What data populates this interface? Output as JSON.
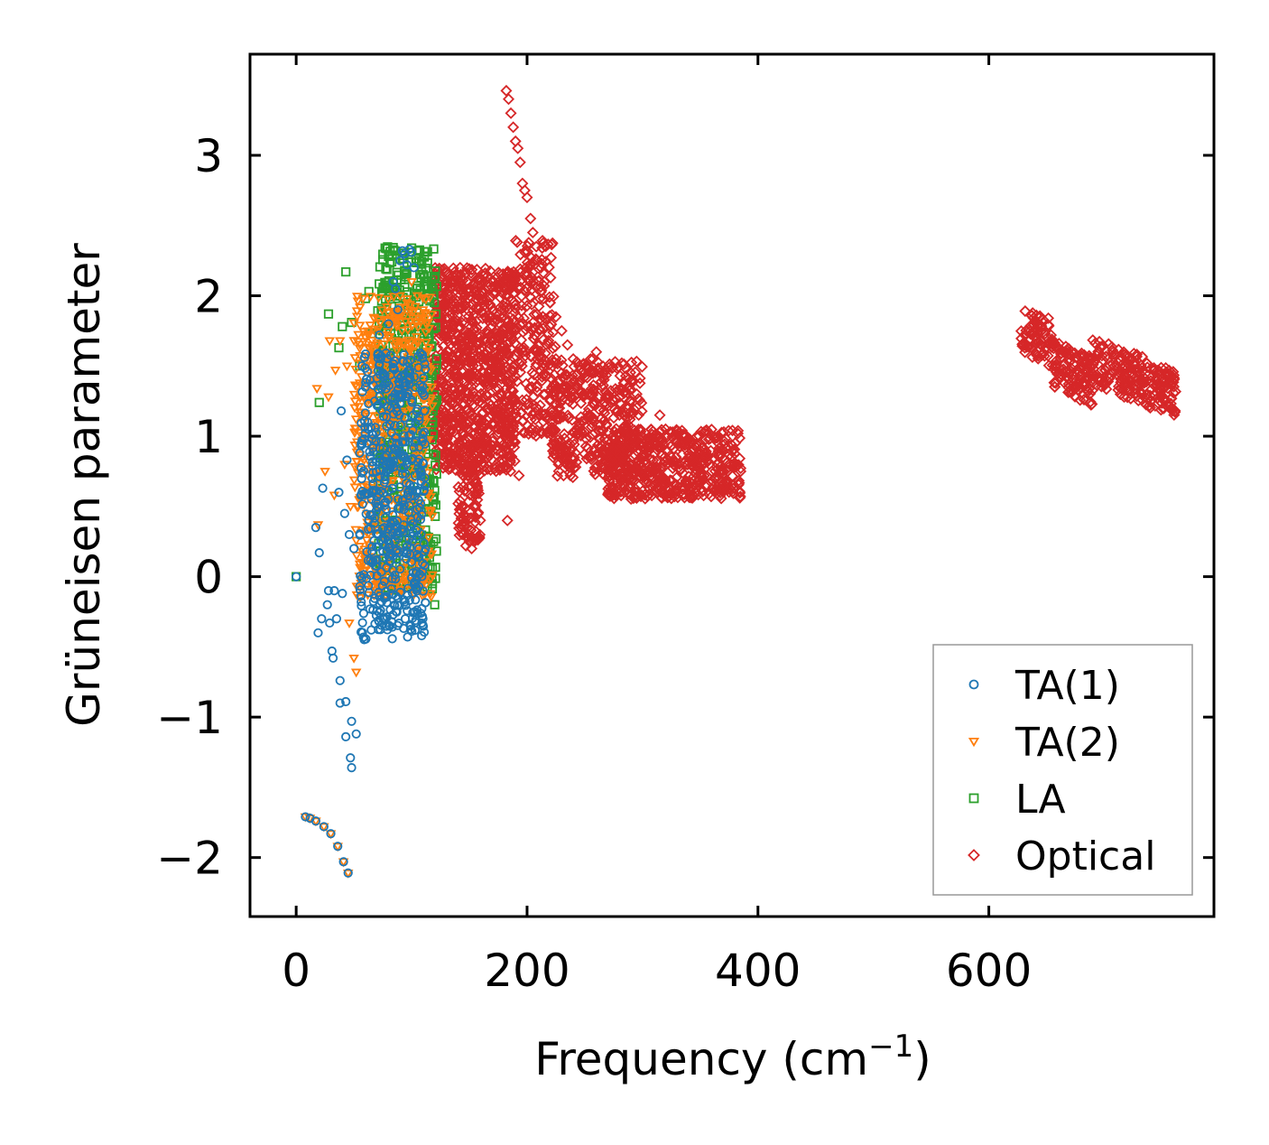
{
  "chart_data": {
    "type": "scatter",
    "title": "",
    "xlabel_base": "Frequency (cm",
    "xlabel_sup": "−1",
    "xlabel_tail": ")",
    "ylabel": "Grüneisen parameter",
    "xlim": [
      -40,
      795
    ],
    "ylim": [
      -2.42,
      3.72
    ],
    "xticks": [
      0,
      200,
      400,
      600
    ],
    "xtick_labels": [
      "0",
      "200",
      "400",
      "600"
    ],
    "yticks": [
      -2,
      -1,
      0,
      1,
      2,
      3
    ],
    "ytick_labels": [
      "−2",
      "−1",
      "0",
      "1",
      "2",
      "3"
    ],
    "legend_position": "lower-right",
    "series": [
      {
        "name": "TA(1)",
        "marker": "circle",
        "color": "#1f77b4",
        "points": [
          [
            0,
            0
          ],
          [
            8,
            -1.71
          ],
          [
            12,
            -1.72
          ],
          [
            17,
            -1.74
          ],
          [
            17,
            0.35
          ],
          [
            19,
            -0.4
          ],
          [
            20,
            0.17
          ],
          [
            22,
            -0.3
          ],
          [
            23,
            0.63
          ],
          [
            24,
            -1.78
          ],
          [
            27,
            -0.2
          ],
          [
            28,
            -0.1
          ],
          [
            29,
            -0.33
          ],
          [
            30,
            -1.83
          ],
          [
            31,
            -0.53
          ],
          [
            32,
            -0.58
          ],
          [
            33,
            -0.1
          ],
          [
            35,
            -0.3
          ],
          [
            36,
            -1.92
          ],
          [
            37,
            0.6
          ],
          [
            38,
            -0.74
          ],
          [
            38,
            -0.9
          ],
          [
            39,
            1.18
          ],
          [
            40,
            -0.12
          ],
          [
            41,
            -2.03
          ],
          [
            42,
            0.45
          ],
          [
            43,
            -0.89
          ],
          [
            43,
            -1.14
          ],
          [
            44,
            0.83
          ],
          [
            45,
            -2.11
          ],
          [
            46,
            0.3
          ],
          [
            47,
            -1.29
          ],
          [
            48,
            -1.36
          ],
          [
            48,
            -1.03
          ],
          [
            50,
            0.2
          ],
          [
            52,
            -1.12
          ],
          [
            55,
            0.88
          ],
          [
            57,
            1.5
          ],
          [
            60,
            1.35
          ],
          [
            62,
            1.1
          ],
          [
            66,
            0.7
          ],
          [
            68,
            1.25
          ],
          [
            70,
            0.5
          ],
          [
            72,
            1.72
          ],
          [
            75,
            1.45
          ],
          [
            78,
            0.75
          ],
          [
            80,
            1.8
          ],
          [
            82,
            1.2
          ],
          [
            84,
            2.1
          ],
          [
            86,
            2.05
          ],
          [
            88,
            1.9
          ],
          [
            90,
            2.25
          ],
          [
            92,
            2.32
          ],
          [
            94,
            2.3
          ],
          [
            96,
            2.22
          ],
          [
            98,
            2.33
          ],
          [
            100,
            2.31
          ],
          [
            102,
            2.2
          ]
        ],
        "cluster": {
          "x": [
            55,
            112
          ],
          "y": [
            -0.45,
            1.6
          ],
          "count": 520,
          "seed": 11
        }
      },
      {
        "name": "TA(2)",
        "marker": "triangle",
        "color": "#ff7f0e",
        "points": [
          [
            8,
            -1.71
          ],
          [
            12,
            -1.72
          ],
          [
            17,
            -1.74
          ],
          [
            18,
            1.34
          ],
          [
            19,
            0.37
          ],
          [
            24,
            -1.78
          ],
          [
            25,
            0.75
          ],
          [
            28,
            1.28
          ],
          [
            29,
            1.68
          ],
          [
            30,
            -1.83
          ],
          [
            33,
            0.58
          ],
          [
            34,
            1.47
          ],
          [
            36,
            -1.92
          ],
          [
            38,
            1.68
          ],
          [
            41,
            -2.03
          ],
          [
            42,
            0.8
          ],
          [
            44,
            1.5
          ],
          [
            45,
            -2.11
          ],
          [
            46,
            -0.33
          ],
          [
            47,
            0.5
          ],
          [
            50,
            -0.58
          ],
          [
            51,
            1.25
          ],
          [
            52,
            -0.68
          ],
          [
            55,
            0.55
          ],
          [
            58,
            1.1
          ],
          [
            62,
            1.75
          ],
          [
            66,
            0.9
          ],
          [
            70,
            1.65
          ],
          [
            75,
            1.3
          ],
          [
            80,
            1.55
          ],
          [
            85,
            1.85
          ],
          [
            90,
            2.0
          ],
          [
            96,
            1.95
          ],
          [
            100,
            2.1
          ],
          [
            105,
            2.0
          ],
          [
            110,
            1.9
          ]
        ],
        "cluster": {
          "x": [
            50,
            118
          ],
          "y": [
            -0.15,
            2.0
          ],
          "count": 600,
          "seed": 23
        }
      },
      {
        "name": "LA",
        "marker": "square",
        "color": "#2ca02c",
        "points": [
          [
            0,
            0
          ],
          [
            20,
            1.24
          ],
          [
            28,
            1.87
          ],
          [
            37,
            1.63
          ],
          [
            40,
            1.78
          ],
          [
            43,
            2.17
          ],
          [
            48,
            1.81
          ],
          [
            55,
            1.5
          ],
          [
            60,
            1.98
          ],
          [
            63,
            2.03
          ],
          [
            66,
            1.73
          ],
          [
            70,
            1.6
          ],
          [
            75,
            1.75
          ],
          [
            80,
            2.28
          ],
          [
            85,
            1.2
          ],
          [
            90,
            2.0
          ],
          [
            95,
            2.15
          ],
          [
            100,
            2.34
          ],
          [
            105,
            2.32
          ],
          [
            110,
            2.15
          ],
          [
            114,
            2.05
          ],
          [
            118,
            -0.05
          ],
          [
            120,
            -0.2
          ],
          [
            119,
            0.25
          ]
        ],
        "cluster": {
          "x": [
            70,
            122
          ],
          "y": [
            -0.1,
            2.35
          ],
          "count": 560,
          "seed": 37
        }
      },
      {
        "name": "Optical",
        "marker": "diamond",
        "color": "#d62728",
        "points": [
          [
            182,
            3.46
          ],
          [
            184,
            3.4
          ],
          [
            186,
            3.3
          ],
          [
            188,
            3.2
          ],
          [
            190,
            3.1
          ],
          [
            192,
            3.05
          ],
          [
            194,
            2.95
          ],
          [
            196,
            2.8
          ],
          [
            198,
            2.75
          ],
          [
            200,
            2.7
          ],
          [
            203,
            2.55
          ],
          [
            205,
            2.45
          ],
          [
            208,
            2.35
          ],
          [
            212,
            2.2
          ],
          [
            215,
            2.1
          ],
          [
            220,
            1.95
          ],
          [
            225,
            1.85
          ],
          [
            230,
            1.75
          ],
          [
            235,
            1.65
          ],
          [
            240,
            1.55
          ],
          [
            245,
            1.5
          ],
          [
            250,
            1.45
          ],
          [
            255,
            1.55
          ],
          [
            260,
            1.6
          ],
          [
            265,
            1.35
          ],
          [
            270,
            1.3
          ],
          [
            275,
            1.25
          ],
          [
            280,
            1.15
          ],
          [
            285,
            1.15
          ],
          [
            290,
            1.25
          ],
          [
            295,
            1.3
          ],
          [
            300,
            1.0
          ],
          [
            305,
            0.95
          ],
          [
            310,
            0.95
          ],
          [
            315,
            1.15
          ],
          [
            320,
            1.05
          ],
          [
            325,
            0.85
          ],
          [
            330,
            0.8
          ],
          [
            335,
            0.95
          ],
          [
            340,
            0.85
          ],
          [
            345,
            0.8
          ],
          [
            350,
            0.9
          ],
          [
            355,
            0.85
          ],
          [
            360,
            0.75
          ],
          [
            365,
            0.8
          ],
          [
            370,
            0.9
          ],
          [
            375,
            0.8
          ],
          [
            380,
            0.78
          ],
          [
            385,
            0.75
          ],
          [
            183,
            0.4
          ],
          [
            193,
            0.72
          ],
          [
            142,
            2.2
          ],
          [
            138,
            2.15
          ],
          [
            147,
            0.22
          ],
          [
            152,
            0.2
          ],
          [
            145,
            0.3
          ],
          [
            150,
            0.25
          ]
        ],
        "clusters": [
          {
            "x": [
              118,
              190
            ],
            "y": [
              0.75,
              2.2
            ],
            "count": 950,
            "seed": 41
          },
          {
            "x": [
              140,
              160
            ],
            "y": [
              0.25,
              1.0
            ],
            "count": 120,
            "seed": 43
          },
          {
            "x": [
              190,
              225
            ],
            "y": [
              1.0,
              2.4
            ],
            "count": 220,
            "seed": 47
          },
          {
            "x": [
              220,
              300
            ],
            "y": [
              0.7,
              1.55
            ],
            "count": 420,
            "seed": 53
          },
          {
            "x": [
              270,
              385
            ],
            "y": [
              0.55,
              1.05
            ],
            "count": 520,
            "seed": 59
          },
          {
            "x": [
              628,
              762
            ],
            "y": [
              1.28,
              1.85
            ],
            "count": 420,
            "seed": 61,
            "band": true
          }
        ]
      }
    ]
  }
}
